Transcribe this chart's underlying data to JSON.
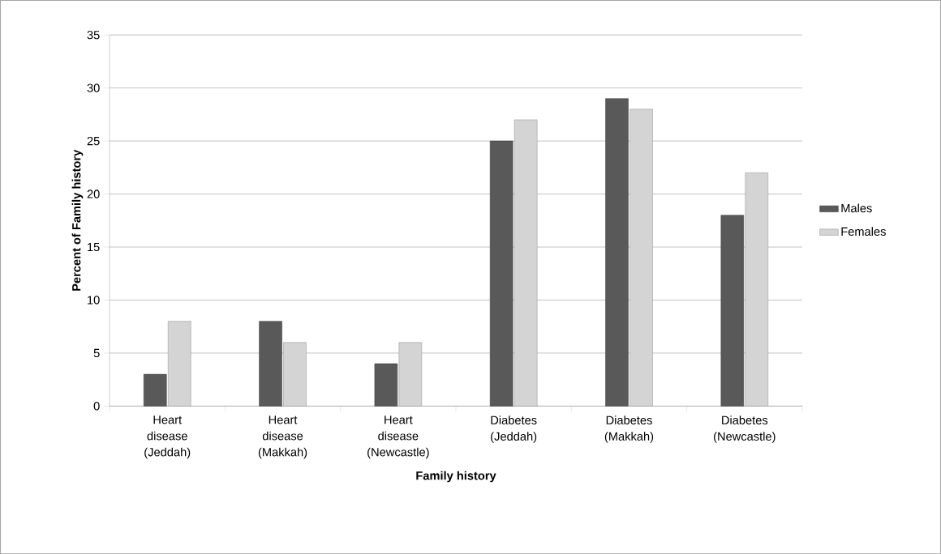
{
  "chart_data": {
    "type": "bar",
    "xlabel": "Family history",
    "ylabel": "Percent of Family history",
    "categories": [
      "Heart disease (Jeddah)",
      "Heart disease (Makkah)",
      "Heart disease (Newcastle)",
      "Diabetes (Jeddah)",
      "Diabetes (Makkah)",
      "Diabetes (Newcastle)"
    ],
    "series": [
      {
        "name": "Males",
        "color": "#595959",
        "values": [
          3,
          8,
          4,
          25,
          29,
          18
        ]
      },
      {
        "name": "Females",
        "color": "#d4d4d4",
        "values": [
          8,
          6,
          6,
          27,
          28,
          22
        ]
      }
    ],
    "ylim": [
      0,
      35
    ],
    "yticks": [
      0,
      5,
      10,
      15,
      20,
      25,
      30,
      35
    ],
    "grid": "y",
    "legend": "right"
  }
}
